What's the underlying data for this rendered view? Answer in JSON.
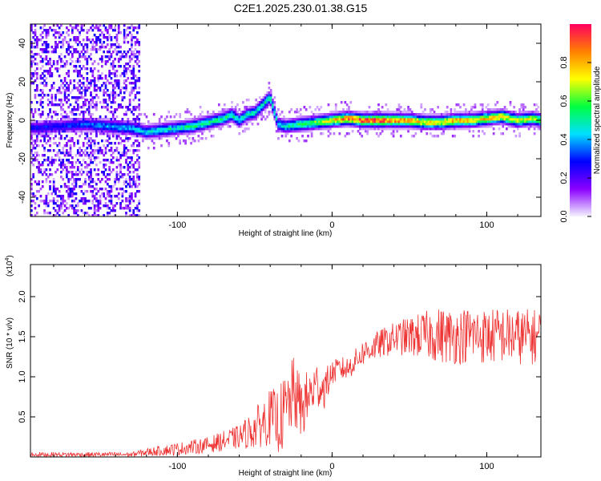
{
  "title": "C2E1.2025.230.01.38.G15",
  "chart_data": [
    {
      "type": "heatmap",
      "xlabel": "Height of straight line (km)",
      "ylabel": "Frequency (Hz)",
      "xlim": [
        -195,
        135
      ],
      "ylim": [
        -50,
        50
      ],
      "xticks": [
        -100,
        0,
        100
      ],
      "yticks": [
        -40,
        -20,
        0,
        20,
        40
      ],
      "colorbar": {
        "label": "Normalized spectral amplitude",
        "range": [
          0,
          1
        ],
        "ticks": [
          "0.0",
          "0.2",
          "0.4",
          "0.6",
          "0.8"
        ],
        "colors": [
          "#f4f4ff",
          "#8a00ff",
          "#0000ff",
          "#00e0ff",
          "#00ff40",
          "#ffff00",
          "#ff8000",
          "#ff0060"
        ]
      },
      "ridge": {
        "x": [
          -195,
          -175,
          -160,
          -145,
          -130,
          -120,
          -110,
          -100,
          -90,
          -80,
          -70,
          -65,
          -60,
          -55,
          -50,
          -45,
          -40,
          -35,
          -30,
          -20,
          -10,
          0,
          10,
          20,
          30,
          40,
          50,
          60,
          70,
          80,
          90,
          100,
          110,
          120,
          130,
          135
        ],
        "y": [
          -4,
          -3,
          -2,
          -3,
          -4,
          -6,
          -5,
          -4,
          -3,
          -1,
          1,
          3,
          0,
          3,
          4,
          8,
          12,
          -2,
          -3,
          -2,
          -1,
          0,
          1,
          0,
          0,
          0,
          0,
          -1,
          -1,
          0,
          0,
          1,
          2,
          0,
          1,
          0
        ],
        "amplitude": [
          0.3,
          0.3,
          0.35,
          0.4,
          0.45,
          0.45,
          0.5,
          0.5,
          0.55,
          0.55,
          0.55,
          0.55,
          0.5,
          0.5,
          0.5,
          0.5,
          0.55,
          0.45,
          0.5,
          0.6,
          0.65,
          0.8,
          0.9,
          0.97,
          0.97,
          0.9,
          0.85,
          0.8,
          0.8,
          0.85,
          0.8,
          0.8,
          0.8,
          0.75,
          0.7,
          0.65
        ]
      }
    },
    {
      "type": "line",
      "xlabel": "Height of straight line (km)",
      "ylabel": "SNR (10 * v/v)",
      "y_multiplier": "(x10",
      "y_multiplier_exp": "4",
      "xlim": [
        -195,
        135
      ],
      "ylim": [
        0,
        24000
      ],
      "xticks": [
        -100,
        0,
        100
      ],
      "yticks": [
        5000,
        10000,
        15000,
        20000
      ],
      "ytick_labels": [
        "0.5",
        "1.0",
        "1.5",
        "2.0"
      ],
      "color": "#ee3333",
      "series": [
        {
          "x": [
            -195,
            -160,
            -130,
            -120,
            -100,
            -80,
            -60,
            -50,
            -40,
            -35,
            -30,
            -25,
            -20,
            -15,
            -10,
            -5,
            0,
            5,
            10,
            15,
            20,
            30,
            40,
            50,
            60,
            70,
            80,
            90,
            100,
            110,
            120,
            135
          ],
          "values": [
            300,
            300,
            300,
            600,
            1000,
            1500,
            2500,
            3500,
            5000,
            4500,
            5500,
            8000,
            6000,
            7500,
            9000,
            8500,
            10500,
            11000,
            11000,
            12000,
            13000,
            14000,
            14800,
            15000,
            15200,
            15200,
            15000,
            15300,
            15000,
            15200,
            15000,
            15000
          ],
          "spread": [
            300,
            300,
            300,
            500,
            800,
            1000,
            1500,
            2500,
            3500,
            4000,
            5000,
            4500,
            4000,
            3500,
            3000,
            2500,
            1500,
            1500,
            1500,
            1500,
            1600,
            1800,
            2000,
            2500,
            3000,
            3500,
            3500,
            3500,
            3500,
            3500,
            3500,
            3500
          ]
        }
      ]
    }
  ]
}
